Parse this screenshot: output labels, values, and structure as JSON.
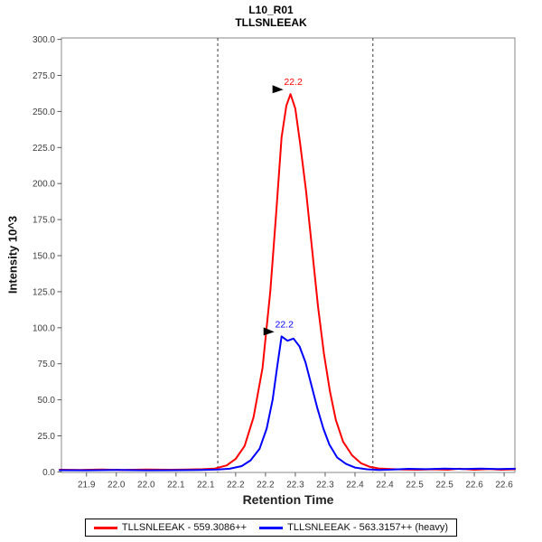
{
  "window": {
    "background": "#ffffff"
  },
  "chart_data": {
    "type": "line",
    "title": "L10_R01",
    "subtitle": "TLLSNLEEAK",
    "xlabel": "Retention Time",
    "ylabel": "Intensity 10^3",
    "xlim": [
      21.858,
      22.618
    ],
    "ylim": [
      0,
      301
    ],
    "grid": false,
    "legend_position": "bottom",
    "x_ticks": {
      "values": [
        21.9,
        21.95,
        22.0,
        22.05,
        22.1,
        22.15,
        22.2,
        22.25,
        22.3,
        22.35,
        22.4,
        22.45,
        22.5,
        22.55,
        22.6
      ],
      "labels": [
        "21.9",
        "22.0",
        "22.0",
        "22.1",
        "22.1",
        "22.2",
        "22.2",
        "22.3",
        "22.3",
        "22.4",
        "22.4",
        "22.5",
        "22.5",
        "22.6",
        "22.6"
      ]
    },
    "y_ticks": {
      "values": [
        0,
        25,
        50,
        75,
        100,
        125,
        150,
        175,
        200,
        225,
        250,
        275,
        300
      ],
      "labels": [
        "0.0",
        "25.0",
        "50.0",
        "75.0",
        "100.0",
        "125.0",
        "150.0",
        "175.0",
        "200.0",
        "225.0",
        "250.0",
        "275.0",
        "300.0"
      ]
    },
    "peak_boundaries": {
      "start": 22.12,
      "end": 22.38,
      "style": "dashed"
    },
    "series": [
      {
        "name": "TLLSNLEEAK - 559.3086++",
        "color": "#ff0000",
        "annotation": {
          "label": "22.2",
          "x": 22.242,
          "y": 262
        },
        "points": [
          [
            21.855,
            1.5
          ],
          [
            21.89,
            1.4
          ],
          [
            21.925,
            1.6
          ],
          [
            21.96,
            1.4
          ],
          [
            22.0,
            1.6
          ],
          [
            22.04,
            1.5
          ],
          [
            22.07,
            1.7
          ],
          [
            22.095,
            1.9
          ],
          [
            22.115,
            2.3
          ],
          [
            22.135,
            4.5
          ],
          [
            22.15,
            9
          ],
          [
            22.165,
            18
          ],
          [
            22.18,
            38
          ],
          [
            22.195,
            72
          ],
          [
            22.208,
            125
          ],
          [
            22.218,
            180
          ],
          [
            22.227,
            232
          ],
          [
            22.235,
            254
          ],
          [
            22.242,
            262
          ],
          [
            22.25,
            252
          ],
          [
            22.258,
            228
          ],
          [
            22.268,
            195
          ],
          [
            22.278,
            155
          ],
          [
            22.288,
            115
          ],
          [
            22.298,
            82
          ],
          [
            22.308,
            56
          ],
          [
            22.318,
            36
          ],
          [
            22.33,
            21
          ],
          [
            22.345,
            11.5
          ],
          [
            22.36,
            6
          ],
          [
            22.375,
            3.5
          ],
          [
            22.39,
            2.4
          ],
          [
            22.41,
            2.0
          ],
          [
            22.43,
            1.7
          ],
          [
            22.455,
            1.5
          ],
          [
            22.48,
            1.8
          ],
          [
            22.505,
            1.5
          ],
          [
            22.525,
            2.2
          ],
          [
            22.55,
            1.5
          ],
          [
            22.575,
            2.0
          ],
          [
            22.595,
            1.5
          ],
          [
            22.618,
            1.8
          ]
        ]
      },
      {
        "name": "TLLSNLEEAK - 563.3157++ (heavy)",
        "color": "#0000ff",
        "annotation": {
          "label": "22.2",
          "x": 22.227,
          "y": 94
        },
        "points": [
          [
            21.855,
            1.2
          ],
          [
            21.9,
            1.1
          ],
          [
            21.95,
            1.3
          ],
          [
            22.0,
            1.1
          ],
          [
            22.05,
            1.2
          ],
          [
            22.09,
            1.3
          ],
          [
            22.12,
            1.6
          ],
          [
            22.14,
            2.2
          ],
          [
            22.16,
            4
          ],
          [
            22.175,
            8
          ],
          [
            22.19,
            16
          ],
          [
            22.202,
            30
          ],
          [
            22.212,
            50
          ],
          [
            22.22,
            74
          ],
          [
            22.227,
            94
          ],
          [
            22.237,
            91
          ],
          [
            22.247,
            92.5
          ],
          [
            22.257,
            87
          ],
          [
            22.267,
            76
          ],
          [
            22.277,
            60
          ],
          [
            22.287,
            44
          ],
          [
            22.297,
            30
          ],
          [
            22.307,
            19
          ],
          [
            22.32,
            10
          ],
          [
            22.335,
            5.5
          ],
          [
            22.35,
            3
          ],
          [
            22.37,
            1.8
          ],
          [
            22.39,
            1.4
          ],
          [
            22.415,
            1.6
          ],
          [
            22.44,
            2.1
          ],
          [
            22.47,
            1.9
          ],
          [
            22.5,
            2.3
          ],
          [
            22.53,
            2.0
          ],
          [
            22.56,
            2.3
          ],
          [
            22.59,
            2.0
          ],
          [
            22.618,
            2.2
          ]
        ]
      }
    ],
    "annotation_arrow_color": "#000000"
  },
  "colors": {
    "frame": "#8a8a8a",
    "tick": "#5a5a5a",
    "tick_label": "#3c3c3c",
    "boundary": "#3a3a3a",
    "legend_border": "#000000"
  }
}
